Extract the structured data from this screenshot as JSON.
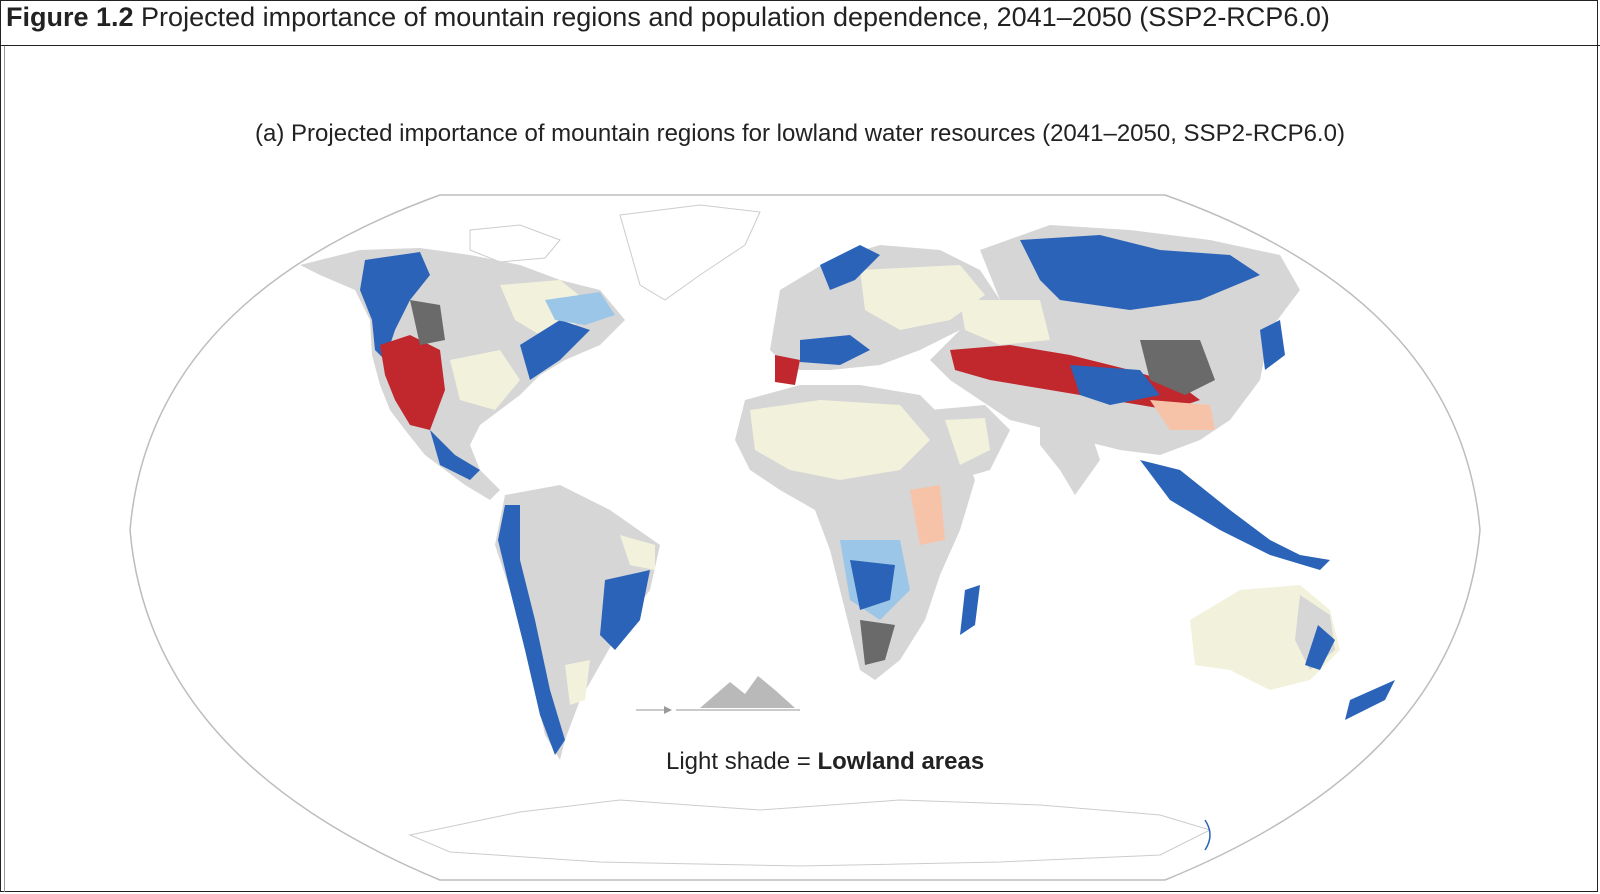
{
  "figure": {
    "label": "Figure 1.2",
    "title": " Projected importance of mountain regions and population dependence, 2041–2050 (SSP2-RCP6.0)"
  },
  "panel": {
    "title": "(a) Projected importance of mountain regions for lowland water resources (2041–2050, SSP2-RCP6.0)"
  },
  "legend": {
    "prefix": "Light shade = ",
    "emphasis": "Lowland areas"
  },
  "colors": {
    "ocean": "#ffffff",
    "graticule_outline": "#bdbdbd",
    "lowland_light": "#f2f2dc",
    "land_grey": "#d6d6d6",
    "blue_dark": "#2a63b8",
    "blue_light": "#9cc6e8",
    "red_dark": "#c0282d",
    "red_light": "#f7c3a8",
    "dark_grey": "#6a6a6a",
    "mountain_icon": "#b9b9b9"
  }
}
